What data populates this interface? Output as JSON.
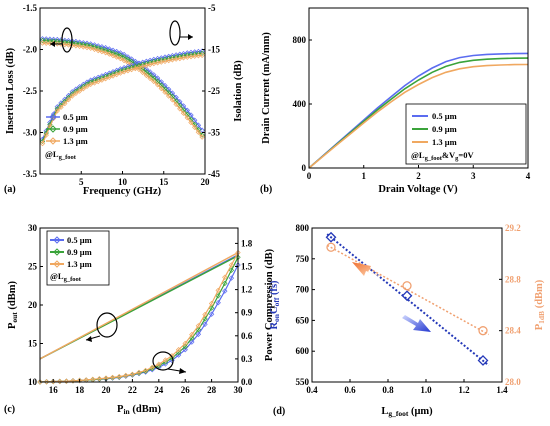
{
  "colors": {
    "blue": "#5b6cf0",
    "green": "#3aa33a",
    "orange": "#f0a860",
    "dark_blue": "#2438b8",
    "orange_marker": "#f0a070"
  },
  "legend": {
    "items": [
      "0.5 μm",
      "0.9 μm",
      "1.3 μm"
    ],
    "note_a": "@L",
    "note_a_sub": "g_foot",
    "note_b": "@L",
    "note_b_sub": "g_foot",
    "note_b_tail": "&V",
    "note_b_tail_sub": "g",
    "note_b_tail_end": "=0V",
    "note_c": "@L",
    "note_c_sub": "g_foot"
  },
  "chart_data": [
    {
      "panel": "(a)",
      "type": "line",
      "xlabel": "Frequency (GHz)",
      "ylabel_left": "Insertion Loss (dB)",
      "ylabel_right": "Isolation (dB)",
      "xlim": [
        0,
        20
      ],
      "ylim_left": [
        -3.5,
        -1.5
      ],
      "ylim_right": [
        -45,
        -5
      ],
      "xticks": [
        5,
        10,
        15,
        20
      ],
      "yticks_left": [
        -1.5,
        -2.0,
        -2.5,
        -3.0,
        -3.5
      ],
      "yticks_right": [
        -5,
        -15,
        -25,
        -35,
        -45
      ],
      "x": [
        0,
        2,
        4,
        6,
        8,
        10,
        12,
        14,
        16,
        18,
        20
      ],
      "insertion_loss": [
        {
          "name": "0.5 μm",
          "values": [
            -1.87,
            -1.88,
            -1.9,
            -1.93,
            -1.98,
            -2.05,
            -2.17,
            -2.32,
            -2.52,
            -2.75,
            -3.02
          ]
        },
        {
          "name": "0.9 μm",
          "values": [
            -1.89,
            -1.9,
            -1.92,
            -1.95,
            -2.01,
            -2.08,
            -2.2,
            -2.36,
            -2.56,
            -2.8,
            -3.08
          ]
        },
        {
          "name": "1.3 μm",
          "values": [
            -1.92,
            -1.93,
            -1.95,
            -1.98,
            -2.04,
            -2.12,
            -2.24,
            -2.4,
            -2.6,
            -2.84,
            -3.1
          ]
        }
      ],
      "isolation": [
        {
          "name": "0.5 μm",
          "values": [
            -38,
            -29,
            -25,
            -22.5,
            -21,
            -19.5,
            -18.3,
            -17.3,
            -16.5,
            -15.8,
            -15.3
          ]
        },
        {
          "name": "0.9 μm",
          "values": [
            -38.5,
            -29.5,
            -25.5,
            -23,
            -21.5,
            -20,
            -18.8,
            -17.8,
            -17,
            -16.3,
            -15.8
          ]
        },
        {
          "name": "1.3 μm",
          "values": [
            -39,
            -30,
            -26,
            -23.5,
            -22,
            -20.5,
            -19.3,
            -18.3,
            -17.5,
            -16.8,
            -16.3
          ]
        }
      ]
    },
    {
      "panel": "(b)",
      "type": "line",
      "xlabel": "Drain Voltage (V)",
      "ylabel": "Drain Current (mA/mm)",
      "xlim": [
        0,
        4
      ],
      "ylim": [
        0,
        1000
      ],
      "xticks": [
        0,
        1,
        2,
        3,
        4
      ],
      "yticks": [
        0,
        400,
        800
      ],
      "x": [
        0,
        0.25,
        0.5,
        0.75,
        1.0,
        1.25,
        1.5,
        1.75,
        2.0,
        2.25,
        2.5,
        2.75,
        3.0,
        3.25,
        3.5,
        3.75,
        4.0
      ],
      "series": [
        {
          "name": "0.5 μm",
          "values": [
            0,
            75,
            150,
            225,
            300,
            375,
            445,
            515,
            575,
            625,
            665,
            690,
            703,
            710,
            713,
            715,
            716
          ]
        },
        {
          "name": "0.9 μm",
          "values": [
            0,
            73,
            146,
            219,
            292,
            363,
            430,
            495,
            550,
            598,
            635,
            660,
            673,
            680,
            684,
            686,
            687
          ]
        },
        {
          "name": "1.3 μm",
          "values": [
            0,
            71,
            142,
            212,
            282,
            350,
            413,
            473,
            522,
            565,
            598,
            620,
            633,
            640,
            644,
            646,
            647
          ]
        }
      ]
    },
    {
      "panel": "(c)",
      "type": "line",
      "xlabel": "P",
      "xlabel_sub": "in",
      "xlabel_tail": " (dBm)",
      "ylabel": "P",
      "ylabel_sub": "out",
      "ylabel_tail": " (dBm)",
      "ylabel_right": "Power Compression (dB)",
      "xlim": [
        15,
        30
      ],
      "ylim_left": [
        10,
        30
      ],
      "ylim_right": [
        0,
        2.0
      ],
      "xticks": [
        16,
        18,
        20,
        22,
        24,
        26,
        28,
        30
      ],
      "yticks_left": [
        10,
        15,
        20,
        25,
        30
      ],
      "yticks_right": [
        0.0,
        0.3,
        0.6,
        0.9,
        1.2,
        1.5,
        1.8
      ],
      "pout_x": [
        15,
        30
      ],
      "pout": [
        {
          "name": "0.5 μm",
          "values": [
            13,
            26.5
          ]
        },
        {
          "name": "0.9 μm",
          "values": [
            13,
            26.4
          ]
        },
        {
          "name": "1.3 μm",
          "values": [
            13,
            26.8
          ]
        }
      ],
      "comp_x": [
        15,
        16,
        17,
        18,
        19,
        20,
        21,
        22,
        23,
        24,
        25,
        26,
        27,
        28,
        29,
        30
      ],
      "compression": [
        {
          "name": "0.5 μm",
          "values": [
            0.0,
            0.005,
            0.01,
            0.02,
            0.03,
            0.04,
            0.06,
            0.09,
            0.13,
            0.19,
            0.28,
            0.42,
            0.62,
            0.88,
            1.18,
            1.52
          ]
        },
        {
          "name": "0.9 μm",
          "values": [
            0.0,
            0.005,
            0.01,
            0.02,
            0.03,
            0.045,
            0.065,
            0.095,
            0.14,
            0.21,
            0.31,
            0.46,
            0.68,
            0.96,
            1.28,
            1.62
          ]
        },
        {
          "name": "1.3 μm",
          "values": [
            0.0,
            0.005,
            0.01,
            0.02,
            0.035,
            0.05,
            0.07,
            0.1,
            0.15,
            0.23,
            0.34,
            0.5,
            0.73,
            1.02,
            1.36,
            1.68
          ]
        }
      ]
    },
    {
      "panel": "(d)",
      "type": "scatter",
      "xlabel": "L",
      "xlabel_sub": "g_foot",
      "xlabel_tail": " (μm)",
      "ylabel": "R",
      "ylabel_sub1": "on",
      "ylabel_mid": "C",
      "ylabel_sub2": "off",
      "ylabel_tail": " (fs)",
      "ylabel_right": "P",
      "ylabel_right_sub": "1dB",
      "ylabel_right_tail": " (dBm)",
      "xlim": [
        0.4,
        1.4
      ],
      "ylim_left": [
        550,
        800
      ],
      "ylim_right": [
        28.0,
        29.2
      ],
      "xticks": [
        0.4,
        0.6,
        0.8,
        1.0,
        1.2,
        1.4
      ],
      "yticks_left": [
        550,
        600,
        650,
        700,
        750,
        800
      ],
      "yticks_right": [
        28.0,
        28.4,
        28.8,
        29.2
      ],
      "ron_coff": {
        "x": [
          0.5,
          0.9,
          1.3
        ],
        "values": [
          785,
          690,
          585
        ]
      },
      "p1db": {
        "x": [
          0.5,
          0.9,
          1.3
        ],
        "values": [
          29.05,
          28.75,
          28.4
        ]
      }
    }
  ]
}
